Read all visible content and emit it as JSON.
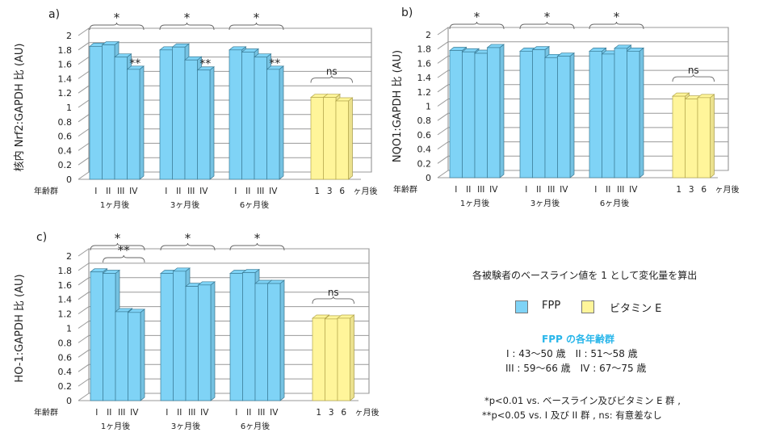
{
  "colors": {
    "fpp": "#7fd3f6",
    "fpp_edge": "#3b7d98",
    "vitamin_e": "#fff59a",
    "vitamin_e_edge": "#b5a84e",
    "groups_title": "#29b6ea"
  },
  "chart_data": [
    {
      "type": "bar",
      "panel_label": "a)",
      "ylabel": "核内 Nrf2:GAPDH 比 (AU)",
      "ylim": [
        0,
        2
      ],
      "yticks": [
        "0",
        "0.2",
        "0.4",
        "0.6",
        "0.8",
        "1",
        "1.2",
        "1.4",
        "1.6",
        "1.8",
        "2"
      ],
      "grid": true,
      "age_group_label": "年齢群",
      "groups": [
        {
          "name": "1ヶ月後",
          "series": "FPP",
          "categories": [
            "I",
            "II",
            "III",
            "IV"
          ],
          "values": [
            1.85,
            1.87,
            1.7,
            1.53
          ]
        },
        {
          "name": "3ヶ月後",
          "series": "FPP",
          "categories": [
            "I",
            "II",
            "III",
            "IV"
          ],
          "values": [
            1.8,
            1.84,
            1.66,
            1.52
          ]
        },
        {
          "name": "6ヶ月後",
          "series": "FPP",
          "categories": [
            "I",
            "II",
            "III",
            "IV"
          ],
          "values": [
            1.8,
            1.77,
            1.7,
            1.53
          ]
        },
        {
          "name": "",
          "series": "ビタミン E",
          "categories": [
            "1",
            "3",
            "6"
          ],
          "suffix": "ヶ月後",
          "values": [
            1.14,
            1.14,
            1.09
          ]
        }
      ],
      "annotations": [
        {
          "text": "*",
          "group": 0,
          "bars": [
            0,
            3
          ],
          "kind": "bracket"
        },
        {
          "text": "*",
          "group": 1,
          "bars": [
            0,
            3
          ],
          "kind": "bracket"
        },
        {
          "text": "*",
          "group": 2,
          "bars": [
            0,
            3
          ],
          "kind": "bracket"
        },
        {
          "text": "ns",
          "group": 3,
          "bars": [
            0,
            2
          ],
          "kind": "bracket"
        },
        {
          "text": "**",
          "group": 0,
          "bars": [
            3,
            3
          ],
          "kind": "mark"
        },
        {
          "text": "**",
          "group": 1,
          "bars": [
            3,
            3
          ],
          "kind": "mark"
        },
        {
          "text": "**",
          "group": 2,
          "bars": [
            3,
            3
          ],
          "kind": "mark"
        }
      ]
    },
    {
      "type": "bar",
      "panel_label": "b)",
      "ylabel": "NQO1:GAPDH 比 (AU)",
      "ylim": [
        0,
        2
      ],
      "yticks": [
        "0",
        "0.2",
        "0.4",
        "0.6",
        "0.8",
        "1",
        "1.2",
        "1.4",
        "1.6",
        "1.8",
        "2"
      ],
      "grid": true,
      "age_group_label": "年齢群",
      "groups": [
        {
          "name": "1ヶ月後",
          "series": "FPP",
          "categories": [
            "I",
            "II",
            "III",
            "IV"
          ],
          "values": [
            1.78,
            1.76,
            1.74,
            1.82
          ]
        },
        {
          "name": "3ヶ月後",
          "series": "FPP",
          "categories": [
            "I",
            "II",
            "III",
            "IV"
          ],
          "values": [
            1.77,
            1.79,
            1.68,
            1.7
          ]
        },
        {
          "name": "6ヶ月後",
          "series": "FPP",
          "categories": [
            "I",
            "II",
            "III",
            "IV"
          ],
          "values": [
            1.77,
            1.73,
            1.81,
            1.77
          ]
        },
        {
          "name": "",
          "series": "ビタミン E",
          "categories": [
            "1",
            "3",
            "6"
          ],
          "suffix": "ヶ月後",
          "values": [
            1.14,
            1.1,
            1.12
          ]
        }
      ],
      "annotations": [
        {
          "text": "*",
          "group": 0,
          "bars": [
            0,
            3
          ],
          "kind": "bracket"
        },
        {
          "text": "*",
          "group": 1,
          "bars": [
            0,
            3
          ],
          "kind": "bracket"
        },
        {
          "text": "*",
          "group": 2,
          "bars": [
            0,
            3
          ],
          "kind": "bracket"
        },
        {
          "text": "ns",
          "group": 3,
          "bars": [
            0,
            2
          ],
          "kind": "bracket"
        }
      ]
    },
    {
      "type": "bar",
      "panel_label": "c)",
      "ylabel": "HO-1:GAPDH 比 (AU)",
      "ylim": [
        0,
        2
      ],
      "yticks": [
        "0",
        "0.2",
        "0.4",
        "0.6",
        "0.8",
        "1",
        "1.2",
        "1.4",
        "1.6",
        "1.8",
        "2"
      ],
      "grid": true,
      "age_group_label": "年齢群",
      "groups": [
        {
          "name": "1ヶ月後",
          "series": "FPP",
          "categories": [
            "I",
            "II",
            "III",
            "IV"
          ],
          "values": [
            1.78,
            1.76,
            1.23,
            1.22
          ]
        },
        {
          "name": "3ヶ月後",
          "series": "FPP",
          "categories": [
            "I",
            "II",
            "III",
            "IV"
          ],
          "values": [
            1.76,
            1.79,
            1.58,
            1.6
          ]
        },
        {
          "name": "6ヶ月後",
          "series": "FPP",
          "categories": [
            "I",
            "II",
            "III",
            "IV"
          ],
          "values": [
            1.76,
            1.77,
            1.62,
            1.62
          ]
        },
        {
          "name": "",
          "series": "ビタミン E",
          "categories": [
            "1",
            "3",
            "6"
          ],
          "suffix": "ヶ月後",
          "values": [
            1.14,
            1.13,
            1.14
          ]
        }
      ],
      "annotations": [
        {
          "text": "*",
          "group": 0,
          "bars": [
            0,
            3
          ],
          "kind": "bracket"
        },
        {
          "text": "**",
          "group": 0,
          "bars": [
            1,
            3
          ],
          "kind": "bracket-inner"
        },
        {
          "text": "*",
          "group": 1,
          "bars": [
            0,
            3
          ],
          "kind": "bracket"
        },
        {
          "text": "*",
          "group": 2,
          "bars": [
            0,
            3
          ],
          "kind": "bracket"
        },
        {
          "text": "ns",
          "group": 3,
          "bars": [
            0,
            2
          ],
          "kind": "bracket"
        }
      ]
    }
  ],
  "notes": {
    "baseline": "各被験者のベースライン値を 1 として変化量を算出",
    "legend": [
      {
        "label": "FPP",
        "color": "#7fd3f6"
      },
      {
        "label": "ビタミン E",
        "color": "#fff59a"
      }
    ],
    "groups_title": "FPP の各年齢群",
    "groups_line1": "I : 43〜50 歳　II : 51〜58 歳",
    "groups_line2": "III : 59〜66 歳　IV : 67〜75 歳",
    "footnote1": "*p<0.01 vs. ベースライン及びビタミン E 群 ,",
    "footnote2": "**p<0.05 vs. I 及び II 群 ,  ns: 有意差なし"
  }
}
